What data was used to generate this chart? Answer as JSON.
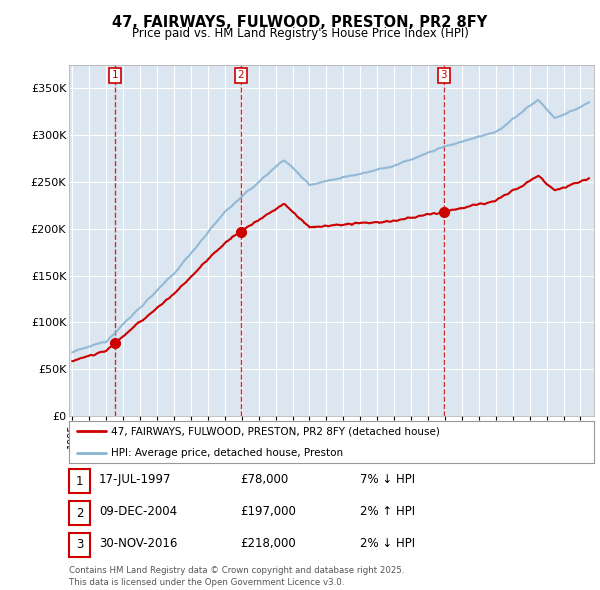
{
  "title": "47, FAIRWAYS, FULWOOD, PRESTON, PR2 8FY",
  "subtitle": "Price paid vs. HM Land Registry's House Price Index (HPI)",
  "legend_line1": "47, FAIRWAYS, FULWOOD, PRESTON, PR2 8FY (detached house)",
  "legend_line2": "HPI: Average price, detached house, Preston",
  "sale_dates": [
    1997.54,
    2004.94,
    2016.92
  ],
  "sale_prices": [
    78000,
    197000,
    218000
  ],
  "sale_labels": [
    "1",
    "2",
    "3"
  ],
  "sale_info": [
    {
      "label": "1",
      "date": "17-JUL-1997",
      "price": "£78,000",
      "hpi": "7% ↓ HPI"
    },
    {
      "label": "2",
      "date": "09-DEC-2004",
      "price": "£197,000",
      "hpi": "2% ↑ HPI"
    },
    {
      "label": "3",
      "date": "30-NOV-2016",
      "price": "£218,000",
      "hpi": "2% ↓ HPI"
    }
  ],
  "ylim": [
    0,
    375000
  ],
  "yticks": [
    0,
    50000,
    100000,
    150000,
    200000,
    250000,
    300000,
    350000
  ],
  "ytick_labels": [
    "£0",
    "£50K",
    "£100K",
    "£150K",
    "£200K",
    "£250K",
    "£300K",
    "£350K"
  ],
  "xlim_start": 1994.8,
  "xlim_end": 2025.8,
  "plot_bg_color": "#dce6f0",
  "fig_bg_color": "#ffffff",
  "red_line_color": "#cc0000",
  "blue_line_color": "#8ab4d4",
  "grid_color": "#ffffff",
  "sale_marker_color": "#cc0000",
  "dashed_line_color": "#cc0000",
  "footnote": "Contains HM Land Registry data © Crown copyright and database right 2025.\nThis data is licensed under the Open Government Licence v3.0."
}
